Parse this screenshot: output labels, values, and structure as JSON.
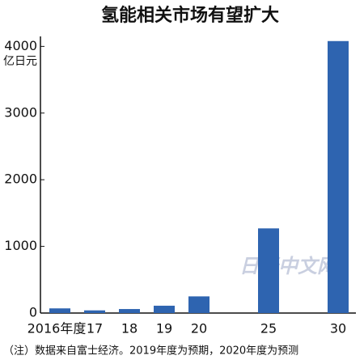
{
  "chart_data": {
    "type": "bar",
    "title": "氢能相关市场有望扩大",
    "y_label": "亿日元",
    "categories": [
      "2016年度",
      "17",
      "18",
      "19",
      "20",
      "25",
      "30"
    ],
    "values": [
      70,
      40,
      60,
      110,
      250,
      1270,
      4080
    ],
    "color": "#2e64b0",
    "ylim": [
      0,
      4150
    ],
    "yticks": [
      0,
      1000,
      2000,
      3000,
      4000
    ],
    "grid": false,
    "note": "（注）数据来自富士经济。2019年度为预期，2020年度为预测",
    "watermark": "日经中文网"
  }
}
